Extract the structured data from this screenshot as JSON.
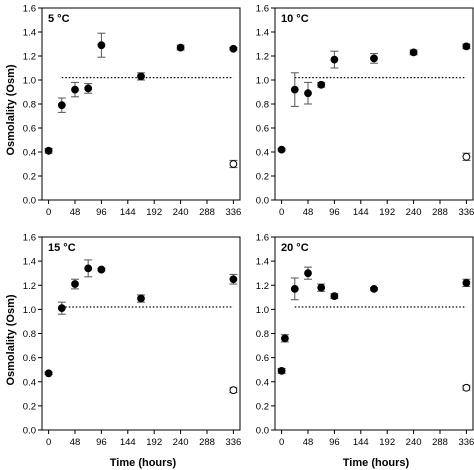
{
  "figure": {
    "ylabel": "Osmolality (Osm)",
    "xlabel": "Time (hours)"
  },
  "chart_data": [
    {
      "type": "scatter",
      "panel_label": "5 °C",
      "xlim": [
        -12,
        348
      ],
      "ylim": [
        0,
        1.6
      ],
      "xticks": [
        0,
        48,
        96,
        144,
        192,
        240,
        288,
        336
      ],
      "yticks": [
        0.0,
        0.2,
        0.4,
        0.6,
        0.8,
        1.0,
        1.2,
        1.4,
        1.6
      ],
      "reference_line": 1.02,
      "series": [
        {
          "marker": "filled-circle",
          "points": [
            {
              "x": 0,
              "y": 0.41,
              "err": 0.02
            },
            {
              "x": 24,
              "y": 0.79,
              "err": 0.06
            },
            {
              "x": 48,
              "y": 0.92,
              "err": 0.06
            },
            {
              "x": 72,
              "y": 0.93,
              "err": 0.04
            },
            {
              "x": 96,
              "y": 1.29,
              "err": 0.1
            },
            {
              "x": 168,
              "y": 1.03,
              "err": 0.03
            },
            {
              "x": 240,
              "y": 1.27,
              "err": 0.02
            },
            {
              "x": 336,
              "y": 1.26,
              "err": 0.01
            }
          ]
        },
        {
          "marker": "open-circle",
          "points": [
            {
              "x": 336,
              "y": 0.3,
              "err": 0.03
            }
          ]
        }
      ]
    },
    {
      "type": "scatter",
      "panel_label": "10 °C",
      "xlim": [
        -12,
        348
      ],
      "ylim": [
        0,
        1.6
      ],
      "xticks": [
        0,
        48,
        96,
        144,
        192,
        240,
        288,
        336
      ],
      "yticks": [
        0.0,
        0.2,
        0.4,
        0.6,
        0.8,
        1.0,
        1.2,
        1.4,
        1.6
      ],
      "reference_line": 1.02,
      "series": [
        {
          "marker": "filled-circle",
          "points": [
            {
              "x": 0,
              "y": 0.42,
              "err": 0.01
            },
            {
              "x": 24,
              "y": 0.92,
              "err": 0.14
            },
            {
              "x": 48,
              "y": 0.89,
              "err": 0.09
            },
            {
              "x": 72,
              "y": 0.96,
              "err": 0.02
            },
            {
              "x": 96,
              "y": 1.17,
              "err": 0.07
            },
            {
              "x": 168,
              "y": 1.18,
              "err": 0.04
            },
            {
              "x": 240,
              "y": 1.23,
              "err": 0.02
            },
            {
              "x": 336,
              "y": 1.28,
              "err": 0.02
            }
          ]
        },
        {
          "marker": "open-circle",
          "points": [
            {
              "x": 336,
              "y": 0.36,
              "err": 0.03
            }
          ]
        }
      ]
    },
    {
      "type": "scatter",
      "panel_label": "15 °C",
      "xlim": [
        -12,
        348
      ],
      "ylim": [
        0,
        1.6
      ],
      "xticks": [
        0,
        48,
        96,
        144,
        192,
        240,
        288,
        336
      ],
      "yticks": [
        0.0,
        0.2,
        0.4,
        0.6,
        0.8,
        1.0,
        1.2,
        1.4,
        1.6
      ],
      "reference_line": 1.02,
      "series": [
        {
          "marker": "filled-circle",
          "points": [
            {
              "x": 0,
              "y": 0.47,
              "err": 0.01
            },
            {
              "x": 24,
              "y": 1.01,
              "err": 0.05
            },
            {
              "x": 48,
              "y": 1.21,
              "err": 0.04
            },
            {
              "x": 72,
              "y": 1.34,
              "err": 0.07
            },
            {
              "x": 96,
              "y": 1.33,
              "err": 0.01
            },
            {
              "x": 168,
              "y": 1.09,
              "err": 0.03
            },
            {
              "x": 336,
              "y": 1.25,
              "err": 0.04
            }
          ]
        },
        {
          "marker": "open-circle",
          "points": [
            {
              "x": 336,
              "y": 0.33,
              "err": 0.02
            }
          ]
        }
      ]
    },
    {
      "type": "scatter",
      "panel_label": "20 °C",
      "xlim": [
        -12,
        348
      ],
      "ylim": [
        0,
        1.6
      ],
      "xticks": [
        0,
        48,
        96,
        144,
        192,
        240,
        288,
        336
      ],
      "yticks": [
        0.0,
        0.2,
        0.4,
        0.6,
        0.8,
        1.0,
        1.2,
        1.4,
        1.6
      ],
      "reference_line": 1.02,
      "series": [
        {
          "marker": "filled-circle",
          "points": [
            {
              "x": 0,
              "y": 0.49,
              "err": 0.02
            },
            {
              "x": 6,
              "y": 0.76,
              "err": 0.03
            },
            {
              "x": 24,
              "y": 1.17,
              "err": 0.09
            },
            {
              "x": 48,
              "y": 1.3,
              "err": 0.05
            },
            {
              "x": 72,
              "y": 1.18,
              "err": 0.03
            },
            {
              "x": 96,
              "y": 1.11,
              "err": 0.02
            },
            {
              "x": 168,
              "y": 1.17,
              "err": 0.01
            },
            {
              "x": 336,
              "y": 1.22,
              "err": 0.03
            }
          ]
        },
        {
          "marker": "open-circle",
          "points": [
            {
              "x": 336,
              "y": 0.35,
              "err": 0.02
            }
          ]
        }
      ]
    }
  ]
}
